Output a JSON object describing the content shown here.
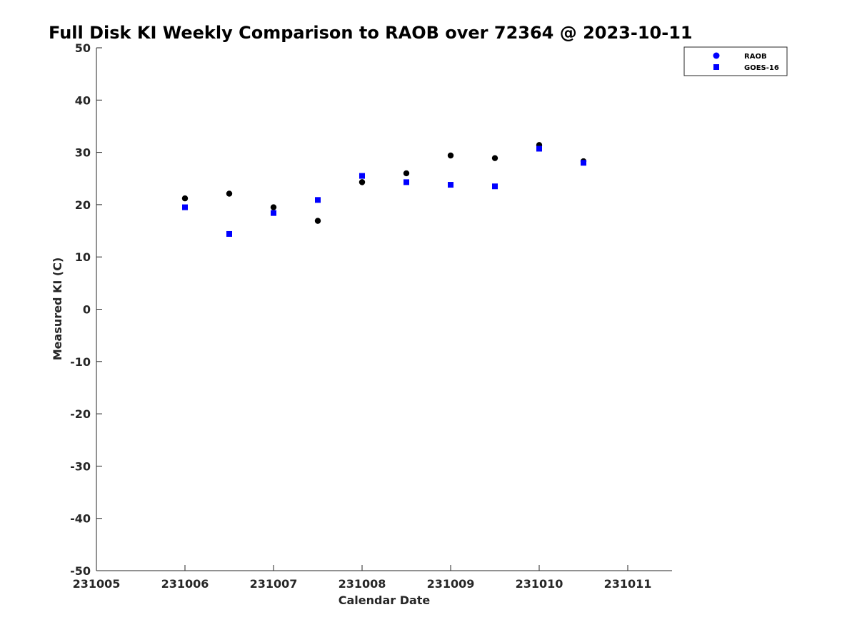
{
  "chart_data": {
    "type": "scatter",
    "title": "Full Disk KI Weekly Comparison to RAOB over 72364 @ 2023-10-11",
    "xlabel": "Calendar Date",
    "ylabel": "Measured KI (C)",
    "xlim": [
      0,
      6.5
    ],
    "ylim": [
      -50,
      50
    ],
    "x_ticks": [
      0,
      1,
      2,
      3,
      4,
      5,
      6
    ],
    "x_tick_labels": [
      "231005",
      "231006",
      "231007",
      "231008",
      "231009",
      "231010",
      "231011"
    ],
    "y_ticks": [
      -50,
      -40,
      -30,
      -20,
      -10,
      0,
      10,
      20,
      30,
      40,
      50
    ],
    "y_tick_labels": [
      "-50",
      "-40",
      "-30",
      "-20",
      "-10",
      "0",
      "10",
      "20",
      "30",
      "40",
      "50"
    ],
    "grid": false,
    "legend_position": "top-right",
    "series": [
      {
        "name": "RAOB",
        "marker": "circle",
        "color": "#000000",
        "legend_color": "#0000ff",
        "x": [
          1,
          1.5,
          2,
          2.5,
          3,
          3.5,
          4,
          4.5,
          5,
          5.5
        ],
        "y": [
          21.2,
          22.1,
          19.5,
          16.9,
          24.3,
          26.0,
          29.4,
          28.9,
          31.4,
          28.3
        ]
      },
      {
        "name": "GOES-16",
        "marker": "square",
        "color": "#0000ff",
        "legend_color": "#0000ff",
        "x": [
          1,
          1.5,
          2,
          2.5,
          3,
          3.5,
          4,
          4.5,
          5,
          5.5
        ],
        "y": [
          19.5,
          14.4,
          18.4,
          20.9,
          25.5,
          24.3,
          23.8,
          23.5,
          30.7,
          28.0
        ]
      }
    ]
  }
}
